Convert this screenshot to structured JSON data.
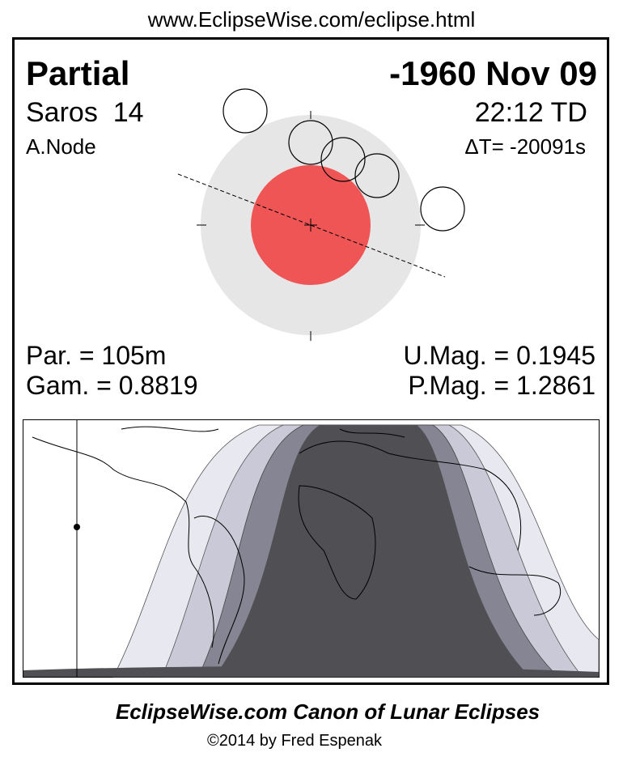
{
  "header": {
    "url": "www.EclipseWise.com/eclipse.html"
  },
  "eclipse": {
    "type": "Partial",
    "date": "-1960 Nov 09",
    "saros": "Saros  14",
    "time": "22:12 TD",
    "node": "A.Node",
    "delta_t": "ΔT= -20091s",
    "duration": "Par. = 105m",
    "gamma": "Gam. = 0.8819",
    "u_mag": "U.Mag. = 0.1945",
    "p_mag": "P.Mag. = 1.2861"
  },
  "footer": {
    "title": "EclipseWise.com Canon of Lunar Eclipses",
    "copyright": "©2014 by Fred Espenak"
  }
}
